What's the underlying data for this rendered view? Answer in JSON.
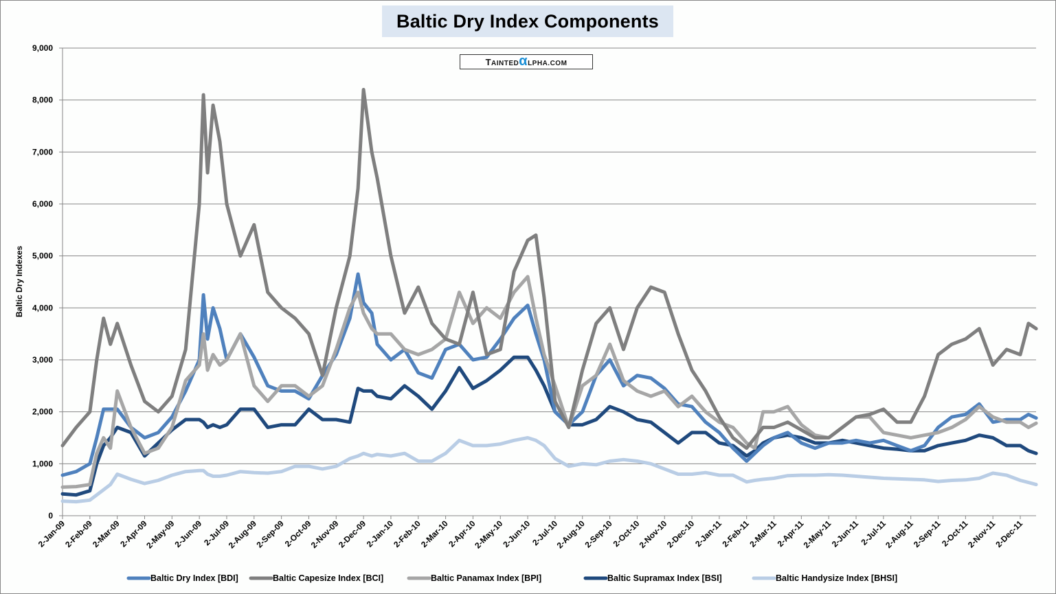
{
  "chart_data": {
    "type": "line",
    "title": "Baltic Dry Index Components",
    "watermark": "TaintedAlpha.com",
    "ylabel": "Baltic Dry Indexes",
    "xlabel": "",
    "ylim": [
      0,
      9000
    ],
    "yticks": [
      0,
      1000,
      2000,
      3000,
      4000,
      5000,
      6000,
      7000,
      8000,
      9000
    ],
    "ytick_labels": [
      "0",
      "1,000",
      "2,000",
      "3,000",
      "4,000",
      "5,000",
      "6,000",
      "7,000",
      "8,000",
      "9,000"
    ],
    "xtick_labels": [
      "2-Jan-09",
      "2-Feb-09",
      "2-Mar-09",
      "2-Apr-09",
      "2-May-09",
      "2-Jun-09",
      "2-Jul-09",
      "2-Aug-09",
      "2-Sep-09",
      "2-Oct-09",
      "2-Nov-09",
      "2-Dec-09",
      "2-Jan-10",
      "2-Feb-10",
      "2-Mar-10",
      "2-Apr-10",
      "2-May-10",
      "2-Jun-10",
      "2-Jul-10",
      "2-Aug-10",
      "2-Sep-10",
      "2-Oct-10",
      "2-Nov-10",
      "2-Dec-10",
      "2-Jan-11",
      "2-Feb-11",
      "2-Mar-11",
      "2-Apr-11",
      "2-May-11",
      "2-Jun-11",
      "2-Jul-11",
      "2-Aug-11",
      "2-Sep-11",
      "2-Oct-11",
      "2-Nov-11",
      "2-Dec-11"
    ],
    "x_unit": "months since 2-Jan-09",
    "grid": true,
    "legend_position": "bottom",
    "x": [
      0,
      0.5,
      1,
      1.25,
      1.5,
      1.75,
      2,
      2.5,
      3,
      3.5,
      4,
      4.5,
      5,
      5.15,
      5.3,
      5.5,
      5.75,
      6,
      6.5,
      7,
      7.5,
      8,
      8.5,
      9,
      9.5,
      10,
      10.5,
      10.8,
      11,
      11.3,
      11.5,
      12,
      12.5,
      13,
      13.5,
      14,
      14.5,
      15,
      15.5,
      16,
      16.5,
      17,
      17.3,
      17.6,
      18,
      18.5,
      19,
      19.5,
      20,
      20.5,
      21,
      21.5,
      22,
      22.5,
      23,
      23.5,
      24,
      24.5,
      25,
      25.3,
      25.6,
      26,
      26.5,
      27,
      27.5,
      28,
      28.5,
      29,
      29.5,
      30,
      30.5,
      31,
      31.5,
      32,
      32.5,
      33,
      33.5,
      34,
      34.5,
      35,
      35.3,
      35.58
    ],
    "series": [
      {
        "name": "Baltic Dry Index [BDI]",
        "color": "#4f81bd",
        "values": [
          780,
          850,
          1000,
          1500,
          2050,
          2050,
          2050,
          1700,
          1500,
          1600,
          1900,
          2400,
          3000,
          4250,
          3400,
          4000,
          3600,
          3000,
          3500,
          3050,
          2500,
          2400,
          2400,
          2250,
          2700,
          3100,
          3800,
          4650,
          4100,
          3900,
          3300,
          3000,
          3200,
          2750,
          2650,
          3200,
          3300,
          3000,
          3050,
          3400,
          3800,
          4050,
          3500,
          3000,
          2000,
          1750,
          2000,
          2700,
          3000,
          2500,
          2700,
          2650,
          2450,
          2150,
          2100,
          1800,
          1600,
          1300,
          1050,
          1200,
          1350,
          1500,
          1600,
          1400,
          1300,
          1400,
          1400,
          1450,
          1400,
          1450,
          1350,
          1250,
          1350,
          1700,
          1900,
          1950,
          2150,
          1800,
          1850,
          1850,
          1950,
          1880
        ]
      },
      {
        "name": "Baltic Capesize Index [BCI]",
        "color": "#7f7f7f",
        "values": [
          1350,
          1700,
          2000,
          3000,
          3800,
          3300,
          3700,
          2900,
          2200,
          2000,
          2300,
          3200,
          6000,
          8100,
          6600,
          7900,
          7200,
          6000,
          5000,
          5600,
          4300,
          4000,
          3800,
          3500,
          2700,
          4000,
          5000,
          6300,
          8200,
          7000,
          6500,
          5000,
          3900,
          4400,
          3700,
          3400,
          3300,
          4300,
          3100,
          3200,
          4700,
          5300,
          5400,
          4200,
          2200,
          1700,
          2800,
          3700,
          4000,
          3200,
          4000,
          4400,
          4300,
          3500,
          2800,
          2400,
          1900,
          1500,
          1300,
          1500,
          1700,
          1700,
          1800,
          1650,
          1500,
          1500,
          1700,
          1900,
          1950,
          2050,
          1800,
          1800,
          2300,
          3100,
          3300,
          3400,
          3600,
          2900,
          3200,
          3100,
          3700,
          3600
        ]
      },
      {
        "name": "Baltic Panamax Index [BPI]",
        "color": "#a6a6a6",
        "values": [
          550,
          560,
          600,
          1200,
          1500,
          1300,
          2400,
          1700,
          1200,
          1300,
          1700,
          2600,
          2900,
          3500,
          2800,
          3100,
          2900,
          3000,
          3500,
          2500,
          2200,
          2500,
          2500,
          2300,
          2500,
          3200,
          4000,
          4300,
          3900,
          3600,
          3500,
          3500,
          3200,
          3100,
          3200,
          3400,
          4300,
          3700,
          4000,
          3800,
          4300,
          4600,
          3800,
          3100,
          2500,
          1700,
          2500,
          2700,
          3300,
          2600,
          2400,
          2300,
          2400,
          2100,
          2300,
          2000,
          1800,
          1700,
          1400,
          1300,
          2000,
          2000,
          2100,
          1750,
          1550,
          1500,
          1700,
          1900,
          1900,
          1600,
          1550,
          1500,
          1550,
          1600,
          1700,
          1850,
          2100,
          1900,
          1800,
          1800,
          1700,
          1780
        ]
      },
      {
        "name": "Baltic Supramax Index [BSI]",
        "color": "#1f497d",
        "values": [
          420,
          400,
          480,
          1000,
          1350,
          1500,
          1700,
          1600,
          1150,
          1400,
          1650,
          1850,
          1850,
          1800,
          1700,
          1750,
          1700,
          1750,
          2050,
          2050,
          1700,
          1750,
          1750,
          2050,
          1850,
          1850,
          1800,
          2450,
          2400,
          2400,
          2300,
          2250,
          2500,
          2300,
          2050,
          2400,
          2850,
          2450,
          2600,
          2800,
          3050,
          3050,
          2800,
          2500,
          2000,
          1750,
          1750,
          1850,
          2100,
          2000,
          1850,
          1800,
          1600,
          1400,
          1600,
          1600,
          1400,
          1350,
          1150,
          1250,
          1400,
          1500,
          1550,
          1500,
          1400,
          1400,
          1450,
          1400,
          1350,
          1300,
          1280,
          1250,
          1250,
          1350,
          1400,
          1450,
          1550,
          1500,
          1350,
          1350,
          1250,
          1200
        ]
      },
      {
        "name": "Baltic Handysize Index [BHSI]",
        "color": "#b9cde5",
        "values": [
          280,
          270,
          300,
          400,
          500,
          600,
          800,
          700,
          620,
          680,
          780,
          850,
          870,
          870,
          800,
          760,
          760,
          780,
          850,
          830,
          820,
          850,
          950,
          950,
          900,
          950,
          1100,
          1150,
          1200,
          1150,
          1180,
          1150,
          1200,
          1050,
          1050,
          1200,
          1450,
          1350,
          1350,
          1380,
          1450,
          1500,
          1450,
          1350,
          1100,
          950,
          1000,
          980,
          1050,
          1080,
          1050,
          1000,
          900,
          800,
          800,
          830,
          780,
          780,
          650,
          680,
          700,
          720,
          770,
          780,
          780,
          790,
          780,
          760,
          740,
          720,
          710,
          700,
          690,
          660,
          680,
          690,
          720,
          820,
          780,
          680,
          640,
          600
        ]
      }
    ]
  }
}
